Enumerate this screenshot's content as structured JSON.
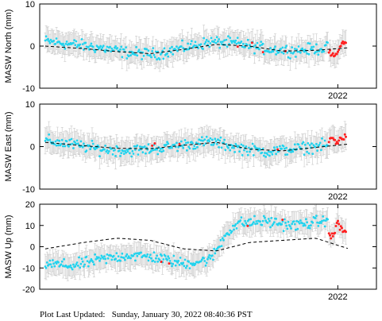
{
  "footer": {
    "label": "Plot Last Updated:",
    "timestamp": "Sunday, January 30, 2022 08:40:36 PST"
  },
  "colors": {
    "points": "#22d3ee",
    "recent_points": "#ff2020",
    "error_bars": "#c8c8c8",
    "model_line": "#000000"
  },
  "chart_data": [
    {
      "type": "scatter",
      "ylabel": "MASW North (mm)",
      "ylim": [
        -10,
        10
      ],
      "yticks": [
        10,
        0,
        -10
      ],
      "xtick_label": "2022",
      "xlim": [
        2019.3,
        2022.35
      ],
      "grid": false,
      "series": [
        {
          "values_x": [
            2019.35,
            2019.6,
            2019.85,
            2020.1,
            2020.35,
            2020.6,
            2020.85,
            2021.1,
            2021.35,
            2021.6,
            2021.85,
            2022.08
          ],
          "values_y": [
            1.2,
            0.4,
            -0.4,
            -1.6,
            -1.9,
            -0.4,
            1.0,
            0.6,
            -0.7,
            -1.1,
            -0.6,
            0.2
          ]
        }
      ],
      "recent": {
        "x": [
          2021.92,
          2021.97,
          2022.0,
          2022.04,
          2022.08
        ],
        "y": [
          -1.5,
          -2.5,
          -1.2,
          0.6,
          1.2
        ]
      },
      "model": {
        "x": [
          2019.35,
          2019.7,
          2020.0,
          2020.3,
          2020.6,
          2020.9,
          2021.2,
          2021.5,
          2021.8,
          2022.1
        ],
        "y": [
          0,
          -0.6,
          -1.3,
          -1.8,
          -0.8,
          0.4,
          0.0,
          -1.2,
          -1.0,
          -0.4
        ]
      }
    },
    {
      "type": "scatter",
      "ylabel": "MASW East (mm)",
      "ylim": [
        -10,
        10
      ],
      "yticks": [
        10,
        0,
        -10
      ],
      "xtick_label": "2022",
      "xlim": [
        2019.3,
        2022.35
      ],
      "grid": false,
      "series": [
        {
          "values_x": [
            2019.35,
            2019.6,
            2019.85,
            2020.1,
            2020.35,
            2020.6,
            2020.85,
            2021.1,
            2021.35,
            2021.6,
            2021.85,
            2022.08
          ],
          "values_y": [
            1.4,
            0.5,
            -0.6,
            -1.0,
            -0.5,
            0.4,
            1.2,
            -0.3,
            -1.2,
            -0.6,
            0.2,
            1.0
          ]
        }
      ],
      "recent": {
        "x": [
          2021.92,
          2021.97,
          2022.0,
          2022.04,
          2022.08
        ],
        "y": [
          1.5,
          2.0,
          0.8,
          2.2,
          3.0
        ]
      },
      "model": {
        "x": [
          2019.35,
          2019.7,
          2020.0,
          2020.3,
          2020.6,
          2020.9,
          2021.2,
          2021.5,
          2021.8,
          2022.1
        ],
        "y": [
          1.0,
          0.2,
          -0.4,
          -0.5,
          0.3,
          1.0,
          -0.6,
          -1.0,
          -0.2,
          0.6
        ]
      }
    },
    {
      "type": "scatter",
      "ylabel": "MASW Up (mm)",
      "ylim": [
        -20,
        20
      ],
      "yticks": [
        20,
        10,
        0,
        -10,
        -20
      ],
      "xtick_label": "2022",
      "xlim": [
        2019.3,
        2022.35
      ],
      "grid": false,
      "series": [
        {
          "values_x": [
            2019.35,
            2019.6,
            2019.85,
            2020.1,
            2020.35,
            2020.6,
            2020.85,
            2021.0,
            2021.1,
            2021.35,
            2021.6,
            2021.85,
            2022.08
          ],
          "values_y": [
            -8,
            -9,
            -6,
            -4,
            -5,
            -8,
            -6,
            7,
            11,
            12,
            10,
            12,
            10
          ]
        }
      ],
      "recent": {
        "x": [
          2021.92,
          2021.97,
          2022.0,
          2022.04,
          2022.08
        ],
        "y": [
          5,
          6,
          12,
          8,
          6
        ]
      },
      "model": {
        "x": [
          2019.35,
          2019.7,
          2020.0,
          2020.3,
          2020.6,
          2020.9,
          2021.2,
          2021.5,
          2021.8,
          2022.1
        ],
        "y": [
          -1,
          2,
          4,
          3,
          -1,
          -2,
          2,
          3,
          4,
          -1
        ]
      }
    }
  ]
}
